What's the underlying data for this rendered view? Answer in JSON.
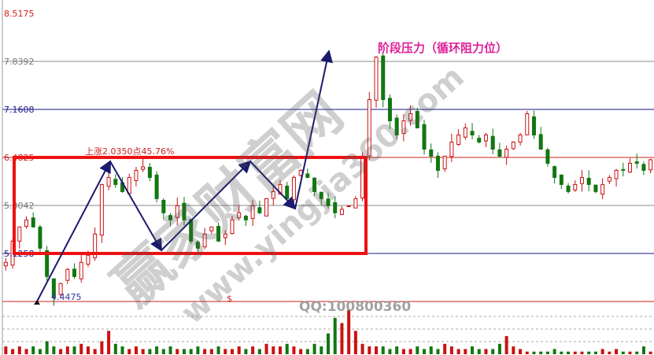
{
  "chart_data": {
    "type": "candlestick",
    "title": "",
    "annotation_title": "阶段压力（循环阻力位）",
    "rise_label": "上涨2.0350点45.76%",
    "low_label": "4.4475",
    "marker_label": "$",
    "y_ticks": [
      "8.5175",
      "7.8392",
      "7.1608",
      "6.4825",
      "5.8042",
      "5.1258"
    ],
    "ylim": [
      4.4475,
      8.5175
    ],
    "levels": [
      {
        "value": 7.8392,
        "color": "#888888"
      },
      {
        "value": 7.1608,
        "color": "#1a1a8c"
      },
      {
        "value": 6.4825,
        "color": "#cc2222"
      },
      {
        "value": 5.8042,
        "color": "#888888"
      },
      {
        "value": 5.1258,
        "color": "#1a1a8c"
      },
      {
        "value": 4.4475,
        "color": "#cc2222"
      }
    ],
    "closes": [
      5.0,
      5.3,
      5.5,
      5.6,
      5.5,
      5.2,
      4.8,
      4.5,
      4.7,
      4.9,
      4.8,
      5.0,
      5.1,
      5.4,
      6.1,
      6.2,
      6.1,
      6.0,
      6.2,
      6.3,
      6.35,
      6.2,
      5.9,
      5.7,
      5.6,
      5.8,
      5.6,
      5.3,
      5.2,
      5.4,
      5.5,
      5.3,
      5.4,
      5.6,
      5.7,
      5.6,
      5.8,
      5.7,
      5.9,
      6.0,
      6.1,
      5.9,
      6.2,
      6.3,
      6.2,
      6.0,
      5.9,
      5.8,
      5.7,
      5.75,
      5.8,
      5.9,
      6.5,
      7.3,
      7.9,
      7.3,
      7.0,
      6.8,
      7.0,
      7.1,
      6.9,
      6.6,
      6.5,
      6.3,
      6.5,
      6.7,
      6.8,
      6.9,
      6.8,
      6.7,
      6.8,
      6.6,
      6.5,
      6.6,
      6.7,
      6.8,
      7.1,
      6.8,
      6.6,
      6.4,
      6.2,
      6.1,
      6.0,
      6.1,
      6.2,
      6.1,
      6.0,
      6.1,
      6.2,
      6.3,
      6.3,
      6.4,
      6.4,
      6.3,
      6.45
    ],
    "volumes": [
      3,
      2,
      3,
      2,
      3,
      2,
      5,
      3,
      2,
      3,
      3,
      4,
      3,
      2,
      5,
      9,
      4,
      3,
      2,
      3,
      2,
      2,
      3,
      2,
      3,
      2,
      2,
      2,
      3,
      2,
      2,
      3,
      2,
      2,
      3,
      2,
      3,
      2,
      4,
      3,
      3,
      4,
      3,
      2,
      2,
      4,
      3,
      8,
      14,
      12,
      17,
      9,
      4,
      3,
      3,
      3,
      2,
      3,
      2,
      2,
      3,
      2,
      3,
      2,
      4,
      3,
      2,
      2,
      3,
      2,
      2,
      2,
      4,
      7,
      3,
      2,
      1,
      1,
      1,
      1,
      2,
      1,
      1,
      1,
      1,
      1,
      1,
      2,
      1,
      2,
      1,
      1,
      1,
      3,
      1
    ],
    "colors": {
      "up": "#cc1111",
      "down": "#117711",
      "box": "#ee1111",
      "arrow": "#1a1a6e",
      "title": "#dd2299"
    },
    "watermark": {
      "site": "赢家财富网",
      "url": "www.yingjia360.com",
      "qq": "QQ:100800360"
    }
  }
}
